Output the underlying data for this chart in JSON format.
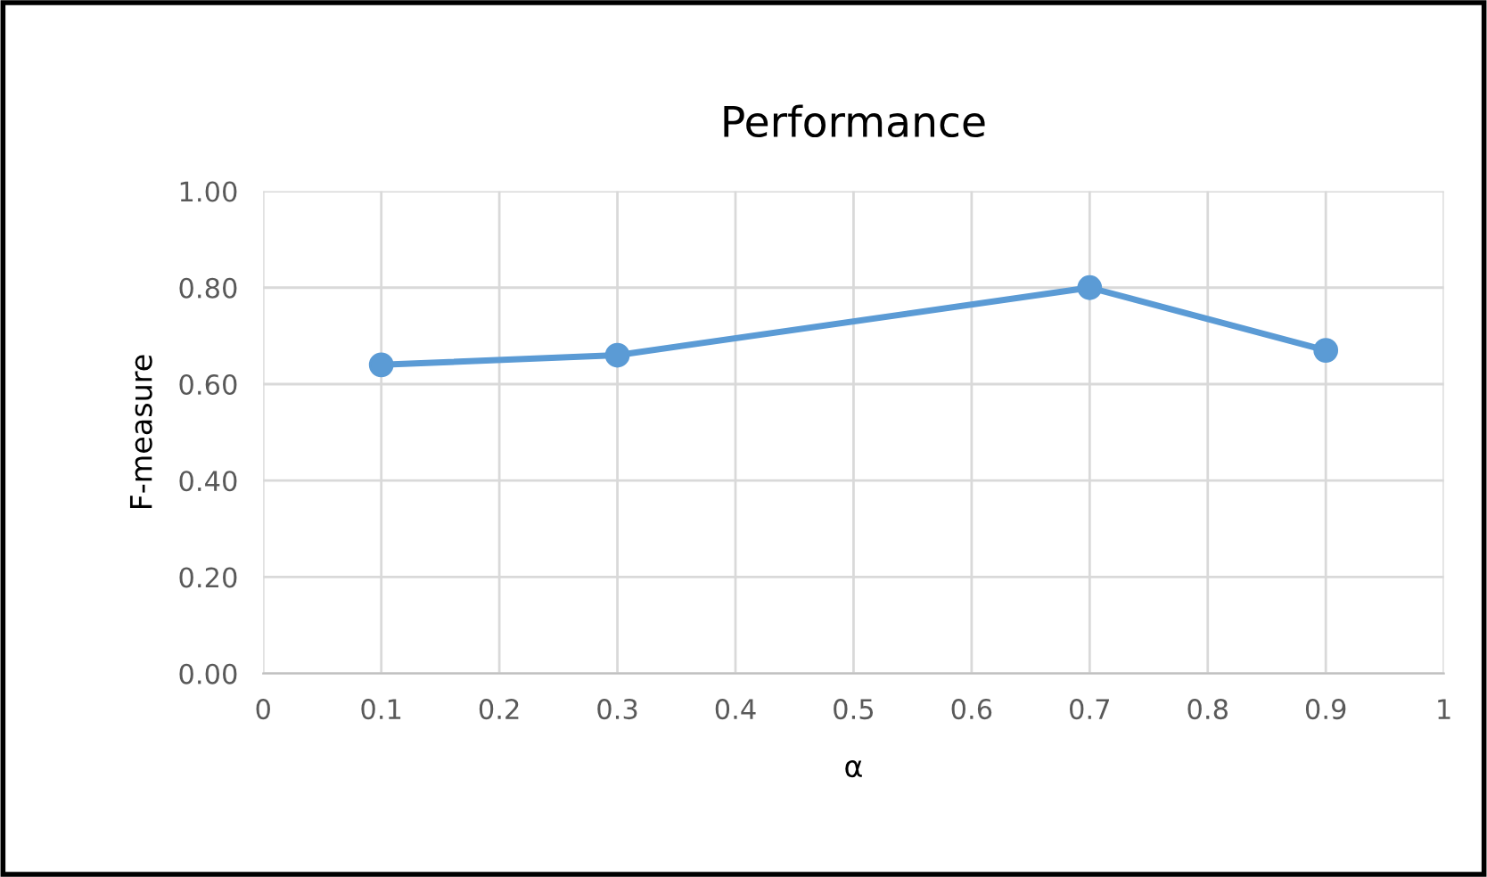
{
  "chart_data": {
    "type": "line",
    "title": "Performance",
    "xlabel": "α",
    "ylabel": "F-measure",
    "x": [
      0.1,
      0.3,
      0.7,
      0.9
    ],
    "series": [
      {
        "color": "#5b9bd5",
        "values": [
          0.64,
          0.66,
          0.8,
          0.67
        ]
      }
    ],
    "xlim": [
      0,
      1
    ],
    "xticks": [
      0,
      0.1,
      0.2,
      0.3,
      0.4,
      0.5,
      0.6,
      0.7,
      0.8,
      0.9,
      1
    ],
    "ylim": [
      0,
      1
    ],
    "yticks": [
      {
        "value": 0,
        "label": "0.00"
      },
      {
        "value": 0.2,
        "label": "0.20"
      },
      {
        "value": 0.4,
        "label": "0.40"
      },
      {
        "value": 0.6,
        "label": "0.60"
      },
      {
        "value": 0.8,
        "label": "0.80"
      },
      {
        "value": 1,
        "label": "1.00"
      }
    ],
    "grid": true,
    "marker": "circle",
    "line_style": "solid",
    "legend": false
  }
}
